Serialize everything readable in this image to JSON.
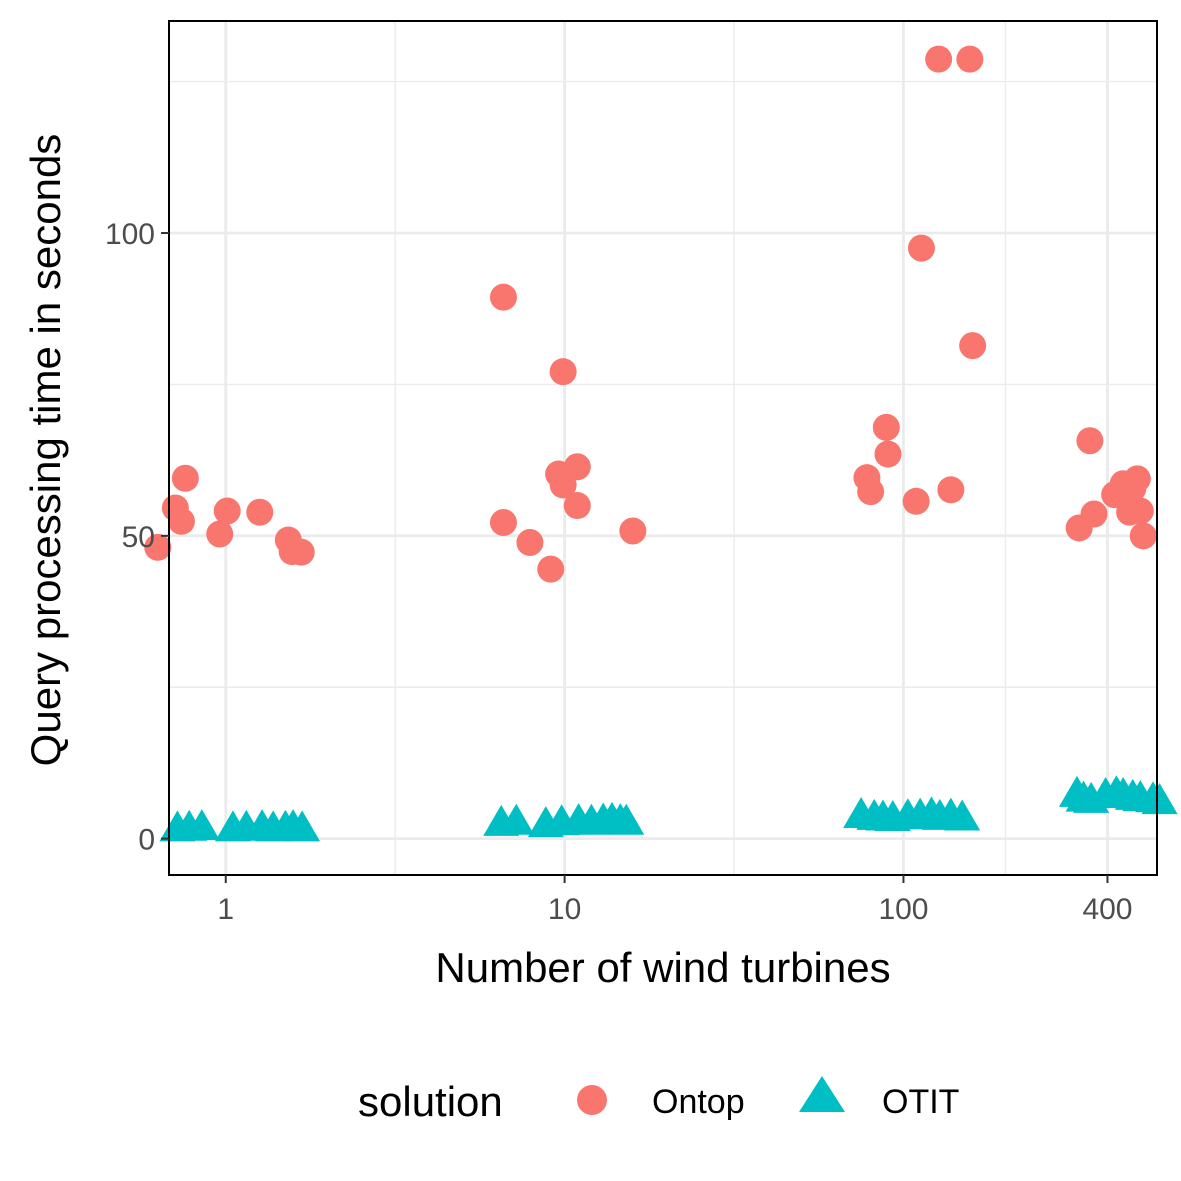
{
  "chart_data": {
    "type": "scatter",
    "xlabel": "Number of wind turbines",
    "ylabel": "Query processing time in seconds",
    "x_scale": "log10",
    "x_ticks": [
      1,
      10,
      100,
      400
    ],
    "x_tick_labels": [
      "1",
      "10",
      "100",
      "400"
    ],
    "y_ticks": [
      0,
      50,
      100
    ],
    "y_tick_labels": [
      "0",
      "50",
      "100"
    ],
    "xlim": [
      0.68,
      560
    ],
    "ylim": [
      -6,
      135
    ],
    "grid": true,
    "legend": {
      "title": "solution",
      "position": "bottom"
    },
    "series": [
      {
        "name": "Ontop",
        "marker": "circle",
        "color": "#F8766D",
        "points": [
          {
            "x": 0.63,
            "y": 48.1
          },
          {
            "x": 0.71,
            "y": 54.6
          },
          {
            "x": 0.74,
            "y": 52.4
          },
          {
            "x": 0.76,
            "y": 59.5
          },
          {
            "x": 0.96,
            "y": 50.3
          },
          {
            "x": 1.01,
            "y": 54.1
          },
          {
            "x": 1.26,
            "y": 53.9
          },
          {
            "x": 1.53,
            "y": 49.3
          },
          {
            "x": 1.57,
            "y": 47.4
          },
          {
            "x": 1.67,
            "y": 47.3
          },
          {
            "x": 6.6,
            "y": 89.4
          },
          {
            "x": 6.6,
            "y": 52.2
          },
          {
            "x": 7.9,
            "y": 48.9
          },
          {
            "x": 9.1,
            "y": 44.5
          },
          {
            "x": 9.6,
            "y": 60.2
          },
          {
            "x": 9.9,
            "y": 77.1
          },
          {
            "x": 9.9,
            "y": 58.4
          },
          {
            "x": 10.9,
            "y": 61.4
          },
          {
            "x": 10.9,
            "y": 55.0
          },
          {
            "x": 15.9,
            "y": 50.8
          },
          {
            "x": 78,
            "y": 59.6
          },
          {
            "x": 80,
            "y": 57.3
          },
          {
            "x": 89,
            "y": 67.9
          },
          {
            "x": 90,
            "y": 63.5
          },
          {
            "x": 109,
            "y": 55.7
          },
          {
            "x": 113,
            "y": 97.5
          },
          {
            "x": 127,
            "y": 128.7
          },
          {
            "x": 138,
            "y": 57.6
          },
          {
            "x": 157,
            "y": 128.7
          },
          {
            "x": 160,
            "y": 81.4
          },
          {
            "x": 330,
            "y": 51.3
          },
          {
            "x": 355,
            "y": 65.7
          },
          {
            "x": 365,
            "y": 53.6
          },
          {
            "x": 420,
            "y": 56.8
          },
          {
            "x": 445,
            "y": 58.6
          },
          {
            "x": 465,
            "y": 53.9
          },
          {
            "x": 475,
            "y": 57.8
          },
          {
            "x": 490,
            "y": 59.4
          },
          {
            "x": 500,
            "y": 54.1
          },
          {
            "x": 510,
            "y": 50.0
          }
        ]
      },
      {
        "name": "OTIT",
        "marker": "triangle",
        "color": "#00BFC4",
        "points": [
          {
            "x": 0.72,
            "y": 1.5
          },
          {
            "x": 0.78,
            "y": 1.6
          },
          {
            "x": 0.85,
            "y": 1.7
          },
          {
            "x": 1.05,
            "y": 1.5
          },
          {
            "x": 1.15,
            "y": 1.6
          },
          {
            "x": 1.28,
            "y": 1.7
          },
          {
            "x": 1.38,
            "y": 1.5
          },
          {
            "x": 1.5,
            "y": 1.6
          },
          {
            "x": 1.58,
            "y": 1.7
          },
          {
            "x": 1.68,
            "y": 1.5
          },
          {
            "x": 6.5,
            "y": 2.4
          },
          {
            "x": 7.2,
            "y": 2.6
          },
          {
            "x": 8.8,
            "y": 2.2
          },
          {
            "x": 9.8,
            "y": 2.5
          },
          {
            "x": 11.0,
            "y": 2.7
          },
          {
            "x": 12.0,
            "y": 2.6
          },
          {
            "x": 13.0,
            "y": 2.8
          },
          {
            "x": 13.8,
            "y": 2.9
          },
          {
            "x": 14.6,
            "y": 2.7
          },
          {
            "x": 15.2,
            "y": 2.6
          },
          {
            "x": 75,
            "y": 3.7
          },
          {
            "x": 82,
            "y": 3.4
          },
          {
            "x": 87,
            "y": 3.3
          },
          {
            "x": 93,
            "y": 3.2
          },
          {
            "x": 103,
            "y": 3.5
          },
          {
            "x": 112,
            "y": 3.6
          },
          {
            "x": 121,
            "y": 3.8
          },
          {
            "x": 128,
            "y": 3.4
          },
          {
            "x": 138,
            "y": 3.6
          },
          {
            "x": 149,
            "y": 3.3
          },
          {
            "x": 325,
            "y": 7.2
          },
          {
            "x": 340,
            "y": 6.4
          },
          {
            "x": 358,
            "y": 6.2
          },
          {
            "x": 395,
            "y": 7.0
          },
          {
            "x": 425,
            "y": 7.3
          },
          {
            "x": 445,
            "y": 7.0
          },
          {
            "x": 475,
            "y": 6.7
          },
          {
            "x": 500,
            "y": 6.5
          },
          {
            "x": 545,
            "y": 6.3
          },
          {
            "x": 570,
            "y": 6.0
          }
        ]
      }
    ]
  }
}
